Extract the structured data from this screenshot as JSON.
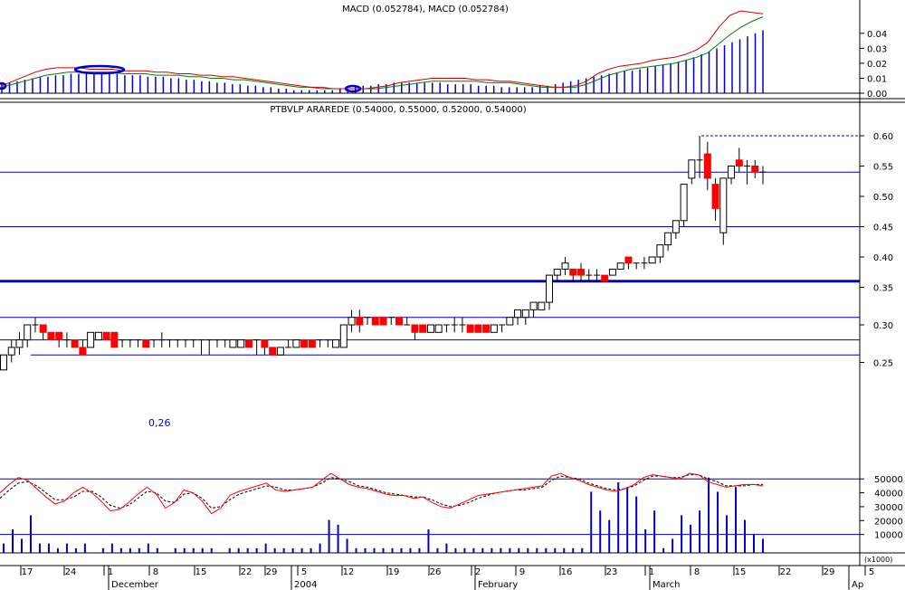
{
  "colors": {
    "up_candle": "#ffffff",
    "down_candle": "#ff0000",
    "doji": "#ff0000",
    "macd_line": "#d40000",
    "signal_line": "#008000",
    "histogram": "#0000cc",
    "hline": "#0000cc",
    "stoch_k": "#ff0000",
    "stoch_d": "#000000",
    "volume": "#0000cc"
  },
  "chart_data": [
    {
      "type": "bar",
      "title": "MACD (0.052784), MACD (0.052784)",
      "yticks": [
        "0.04",
        "0.03",
        "0.02",
        "0.01",
        "0.00"
      ],
      "ylim": [
        0,
        0.055
      ],
      "histogram": [
        0.006,
        0.007,
        0.008,
        0.009,
        0.01,
        0.011,
        0.011,
        0.012,
        0.012,
        0.013,
        0.013,
        0.013,
        0.013,
        0.013,
        0.013,
        0.013,
        0.012,
        0.012,
        0.012,
        0.011,
        0.011,
        0.011,
        0.01,
        0.01,
        0.009,
        0.009,
        0.008,
        0.008,
        0.007,
        0.007,
        0.006,
        0.006,
        0.005,
        0.005,
        0.004,
        0.004,
        0.003,
        0.003,
        0.002,
        0.002,
        0.002,
        0.002,
        0.002,
        0.002,
        0.003,
        0.003,
        0.004,
        0.005,
        0.005,
        0.006,
        0.006,
        0.007,
        0.007,
        0.007,
        0.007,
        0.007,
        0.007,
        0.007,
        0.006,
        0.006,
        0.006,
        0.006,
        0.005,
        0.005,
        0.005,
        0.004,
        0.004,
        0.004,
        0.004,
        0.004,
        0.005,
        0.005,
        0.006,
        0.007,
        0.008,
        0.009,
        0.01,
        0.011,
        0.012,
        0.013,
        0.014,
        0.015,
        0.015,
        0.016,
        0.017,
        0.018,
        0.019,
        0.02,
        0.021,
        0.022,
        0.024,
        0.026,
        0.028,
        0.03,
        0.032,
        0.034,
        0.036,
        0.038,
        0.04,
        0.042
      ],
      "macd_line": [
        0.005,
        0.008,
        0.011,
        0.014,
        0.016,
        0.017,
        0.017,
        0.017,
        0.016,
        0.016,
        0.016,
        0.015,
        0.015,
        0.015,
        0.014,
        0.014,
        0.013,
        0.013,
        0.012,
        0.012,
        0.011,
        0.011,
        0.01,
        0.009,
        0.008,
        0.007,
        0.006,
        0.005,
        0.004,
        0.004,
        0.003,
        0.003,
        0.003,
        0.003,
        0.004,
        0.005,
        0.007,
        0.008,
        0.009,
        0.01,
        0.01,
        0.01,
        0.01,
        0.009,
        0.009,
        0.008,
        0.008,
        0.007,
        0.006,
        0.005,
        0.004,
        0.004,
        0.005,
        0.008,
        0.013,
        0.016,
        0.018,
        0.019,
        0.02,
        0.022,
        0.023,
        0.024,
        0.026,
        0.029,
        0.034,
        0.044,
        0.052,
        0.055,
        0.054,
        0.053
      ],
      "signal_line": [
        0.004,
        0.006,
        0.008,
        0.01,
        0.012,
        0.013,
        0.014,
        0.014,
        0.014,
        0.014,
        0.014,
        0.013,
        0.013,
        0.013,
        0.012,
        0.012,
        0.012,
        0.011,
        0.011,
        0.01,
        0.01,
        0.009,
        0.009,
        0.008,
        0.007,
        0.006,
        0.005,
        0.004,
        0.004,
        0.003,
        0.003,
        0.003,
        0.003,
        0.003,
        0.003,
        0.004,
        0.005,
        0.006,
        0.007,
        0.008,
        0.008,
        0.008,
        0.008,
        0.008,
        0.007,
        0.007,
        0.007,
        0.006,
        0.005,
        0.004,
        0.004,
        0.004,
        0.004,
        0.006,
        0.009,
        0.012,
        0.014,
        0.016,
        0.017,
        0.018,
        0.019,
        0.02,
        0.022,
        0.024,
        0.027,
        0.033,
        0.039,
        0.044,
        0.048,
        0.051
      ]
    },
    {
      "type": "candlestick",
      "title": "PTBVLP ARAREDE (0.54000, 0.55000, 0.52000, 0.54000)",
      "yticks": [
        "0.60",
        "0.55",
        "0.50",
        "0.45",
        "0.40",
        "0.35",
        "0.30",
        "0.25"
      ],
      "ylim": [
        0.22,
        0.63
      ],
      "annotation": "0,26",
      "horizontal_lines": [
        0.26,
        0.28,
        0.31,
        0.36,
        0.45,
        0.54
      ],
      "resistance_dotted": 0.6,
      "candles": [
        [
          0.24,
          0.26,
          0.24,
          0.26
        ],
        [
          0.26,
          0.28,
          0.25,
          0.27
        ],
        [
          0.27,
          0.29,
          0.26,
          0.28
        ],
        [
          0.28,
          0.3,
          0.27,
          0.3
        ],
        [
          0.3,
          0.31,
          0.29,
          0.3
        ],
        [
          0.3,
          0.3,
          0.28,
          0.29
        ],
        [
          0.29,
          0.29,
          0.28,
          0.28
        ],
        [
          0.29,
          0.29,
          0.27,
          0.28
        ],
        [
          0.28,
          0.29,
          0.27,
          0.28
        ],
        [
          0.28,
          0.28,
          0.27,
          0.27
        ],
        [
          0.27,
          0.28,
          0.26,
          0.26
        ],
        [
          0.27,
          0.29,
          0.27,
          0.29
        ],
        [
          0.28,
          0.29,
          0.28,
          0.29
        ],
        [
          0.29,
          0.29,
          0.28,
          0.28
        ],
        [
          0.29,
          0.29,
          0.27,
          0.27
        ],
        [
          0.28,
          0.28,
          0.27,
          0.28
        ],
        [
          0.28,
          0.28,
          0.27,
          0.28
        ],
        [
          0.28,
          0.28,
          0.27,
          0.28
        ],
        [
          0.28,
          0.28,
          0.27,
          0.27
        ],
        [
          0.28,
          0.28,
          0.27,
          0.28
        ],
        [
          0.28,
          0.29,
          0.27,
          0.28
        ],
        [
          0.28,
          0.28,
          0.27,
          0.28
        ],
        [
          0.28,
          0.28,
          0.27,
          0.28
        ],
        [
          0.28,
          0.28,
          0.27,
          0.28
        ],
        [
          0.28,
          0.28,
          0.27,
          0.28
        ],
        [
          0.28,
          0.28,
          0.26,
          0.28
        ],
        [
          0.28,
          0.28,
          0.26,
          0.28
        ],
        [
          0.28,
          0.28,
          0.27,
          0.28
        ],
        [
          0.28,
          0.28,
          0.27,
          0.28
        ],
        [
          0.27,
          0.28,
          0.27,
          0.28
        ],
        [
          0.27,
          0.28,
          0.27,
          0.28
        ],
        [
          0.28,
          0.28,
          0.27,
          0.27
        ],
        [
          0.28,
          0.28,
          0.26,
          0.28
        ],
        [
          0.28,
          0.28,
          0.26,
          0.27
        ],
        [
          0.27,
          0.27,
          0.26,
          0.26
        ],
        [
          0.26,
          0.27,
          0.26,
          0.27
        ],
        [
          0.27,
          0.28,
          0.27,
          0.27
        ],
        [
          0.27,
          0.28,
          0.27,
          0.28
        ],
        [
          0.28,
          0.28,
          0.27,
          0.27
        ],
        [
          0.28,
          0.28,
          0.27,
          0.27
        ],
        [
          0.28,
          0.28,
          0.27,
          0.28
        ],
        [
          0.28,
          0.28,
          0.27,
          0.28
        ],
        [
          0.27,
          0.28,
          0.27,
          0.28
        ],
        [
          0.27,
          0.3,
          0.27,
          0.3
        ],
        [
          0.3,
          0.32,
          0.29,
          0.31
        ],
        [
          0.31,
          0.32,
          0.29,
          0.3
        ],
        [
          0.31,
          0.31,
          0.3,
          0.31
        ],
        [
          0.31,
          0.31,
          0.3,
          0.3
        ],
        [
          0.31,
          0.31,
          0.3,
          0.3
        ],
        [
          0.31,
          0.31,
          0.3,
          0.31
        ],
        [
          0.31,
          0.31,
          0.3,
          0.3
        ],
        [
          0.3,
          0.31,
          0.3,
          0.3
        ],
        [
          0.3,
          0.3,
          0.28,
          0.29
        ],
        [
          0.3,
          0.3,
          0.29,
          0.29
        ],
        [
          0.29,
          0.3,
          0.29,
          0.3
        ],
        [
          0.29,
          0.3,
          0.29,
          0.3
        ],
        [
          0.3,
          0.3,
          0.29,
          0.3
        ],
        [
          0.3,
          0.31,
          0.29,
          0.3
        ],
        [
          0.3,
          0.31,
          0.29,
          0.3
        ],
        [
          0.3,
          0.3,
          0.29,
          0.29
        ],
        [
          0.3,
          0.3,
          0.29,
          0.29
        ],
        [
          0.3,
          0.3,
          0.29,
          0.29
        ],
        [
          0.29,
          0.3,
          0.29,
          0.3
        ],
        [
          0.3,
          0.3,
          0.29,
          0.3
        ],
        [
          0.3,
          0.31,
          0.3,
          0.31
        ],
        [
          0.31,
          0.32,
          0.3,
          0.32
        ],
        [
          0.31,
          0.32,
          0.3,
          0.32
        ],
        [
          0.32,
          0.33,
          0.31,
          0.33
        ],
        [
          0.32,
          0.33,
          0.32,
          0.33
        ],
        [
          0.33,
          0.37,
          0.32,
          0.37
        ],
        [
          0.37,
          0.38,
          0.36,
          0.38
        ],
        [
          0.38,
          0.4,
          0.37,
          0.39
        ],
        [
          0.38,
          0.38,
          0.36,
          0.37
        ],
        [
          0.38,
          0.39,
          0.36,
          0.37
        ],
        [
          0.37,
          0.38,
          0.36,
          0.37
        ],
        [
          0.37,
          0.38,
          0.36,
          0.37
        ],
        [
          0.37,
          0.37,
          0.36,
          0.36
        ],
        [
          0.37,
          0.38,
          0.37,
          0.38
        ],
        [
          0.38,
          0.39,
          0.38,
          0.39
        ],
        [
          0.4,
          0.4,
          0.38,
          0.39
        ],
        [
          0.39,
          0.39,
          0.38,
          0.39
        ],
        [
          0.39,
          0.4,
          0.38,
          0.39
        ],
        [
          0.39,
          0.4,
          0.39,
          0.4
        ],
        [
          0.4,
          0.42,
          0.39,
          0.42
        ],
        [
          0.42,
          0.44,
          0.41,
          0.44
        ],
        [
          0.44,
          0.46,
          0.43,
          0.46
        ],
        [
          0.46,
          0.52,
          0.45,
          0.52
        ],
        [
          0.53,
          0.56,
          0.52,
          0.56
        ],
        [
          0.56,
          0.6,
          0.53,
          0.56
        ],
        [
          0.57,
          0.59,
          0.51,
          0.53
        ],
        [
          0.52,
          0.53,
          0.46,
          0.48
        ],
        [
          0.44,
          0.53,
          0.42,
          0.53
        ],
        [
          0.53,
          0.55,
          0.52,
          0.55
        ],
        [
          0.56,
          0.58,
          0.54,
          0.55
        ],
        [
          0.55,
          0.56,
          0.52,
          0.55
        ],
        [
          0.55,
          0.56,
          0.53,
          0.54
        ],
        [
          0.54,
          0.55,
          0.52,
          0.54
        ]
      ]
    },
    {
      "type": "line",
      "title": "",
      "stoch_k": [
        40,
        46,
        51,
        49,
        43,
        37,
        32,
        34,
        40,
        44,
        40,
        34,
        27,
        28,
        33,
        39,
        44,
        39,
        29,
        33,
        42,
        40,
        34,
        25,
        29,
        38,
        41,
        43,
        45,
        47,
        42,
        41,
        42,
        43,
        44,
        49,
        54,
        50,
        46,
        44,
        43,
        41,
        39,
        38,
        38,
        36,
        37,
        33,
        30,
        29,
        32,
        35,
        38,
        39,
        40,
        41,
        42,
        43,
        44,
        45,
        52,
        54,
        51,
        49,
        46,
        44,
        42,
        41,
        43,
        46,
        51,
        53,
        52,
        51,
        50,
        54,
        53,
        48,
        46,
        44,
        45,
        46,
        46,
        45
      ],
      "stoch_d": [
        36,
        42,
        47,
        48,
        45,
        40,
        35,
        35,
        37,
        41,
        41,
        37,
        31,
        29,
        31,
        36,
        41,
        40,
        34,
        33,
        39,
        40,
        36,
        29,
        30,
        35,
        39,
        41,
        43,
        45,
        44,
        42,
        42,
        43,
        44,
        47,
        51,
        50,
        48,
        45,
        44,
        42,
        40,
        39,
        38,
        37,
        37,
        35,
        32,
        30,
        31,
        33,
        36,
        38,
        40,
        41,
        42,
        42,
        43,
        44,
        49,
        52,
        51,
        50,
        47,
        45,
        43,
        42,
        43,
        45,
        49,
        52,
        52,
        51,
        51,
        53,
        53,
        50,
        48,
        45,
        45,
        45,
        46,
        46
      ],
      "volume": [
        2,
        5,
        3,
        8,
        2,
        2,
        1,
        2,
        1,
        2,
        0,
        1,
        2,
        1,
        1,
        1,
        2,
        1,
        0,
        1,
        1,
        1,
        1,
        1,
        0,
        1,
        1,
        1,
        1,
        2,
        1,
        1,
        1,
        1,
        1,
        2,
        7,
        6,
        3,
        1,
        1,
        1,
        1,
        1,
        1,
        1,
        1,
        5,
        1,
        2,
        1,
        1,
        1,
        1,
        1,
        1,
        1,
        1,
        1,
        1,
        1,
        1,
        1,
        1,
        1,
        13,
        9,
        7,
        15,
        14,
        12,
        5,
        9,
        1,
        3,
        8,
        6,
        9,
        16,
        13,
        8,
        14,
        7,
        4,
        3
      ],
      "yticks": [
        "50000",
        "40000",
        "30000",
        "20000",
        "10000"
      ],
      "ylim": [
        0,
        56000
      ],
      "scale_note": "(x1000)"
    }
  ],
  "x_axis": {
    "day_ticks": [
      "17",
      "24",
      "1",
      "8",
      "15",
      "22",
      "29",
      "5",
      "12",
      "19",
      "26",
      "2",
      "9",
      "16",
      "23",
      "1",
      "8",
      "15",
      "22",
      "29",
      "5"
    ],
    "month_labels": [
      "December",
      "2004",
      "February",
      "March",
      "Ap"
    ]
  }
}
